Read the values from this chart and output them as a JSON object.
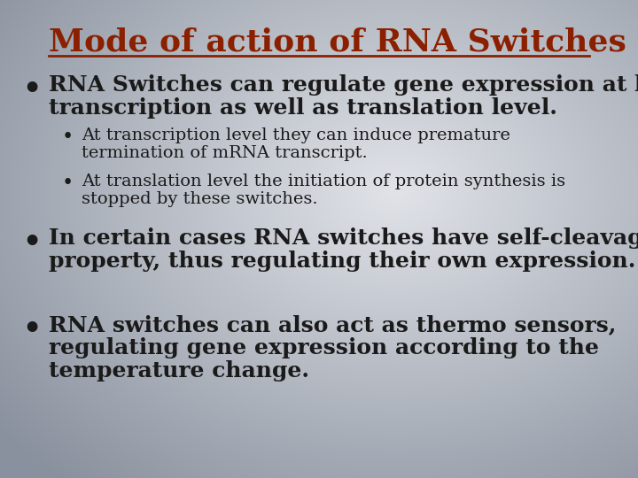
{
  "title": "Mode of action of RNA Switches",
  "title_color": "#8B2000",
  "title_fontsize": 26,
  "bullet1_line1": "RNA Switches can regulate gene expression at both",
  "bullet1_line2": "transcription as well as translation level.",
  "sub_bullet1_line1": "At transcription level they can induce premature",
  "sub_bullet1_line2": "termination of mRNA transcript.",
  "sub_bullet2_line1": "At translation level the initiation of protein synthesis is",
  "sub_bullet2_line2": "stopped by these switches.",
  "bullet2_line1": "In certain cases RNA switches have self-cleavage",
  "bullet2_line2": "property, thus regulating their own expression.",
  "bullet3_line1": "RNA switches can also act as thermo sensors,",
  "bullet3_line2": "regulating gene expression according to the",
  "bullet3_line3": "temperature change.",
  "text_color": "#1a1a1a",
  "main_bullet_fontsize": 18,
  "sub_bullet_fontsize": 14,
  "fig_width": 7.2,
  "fig_height": 5.4,
  "dpi": 100
}
